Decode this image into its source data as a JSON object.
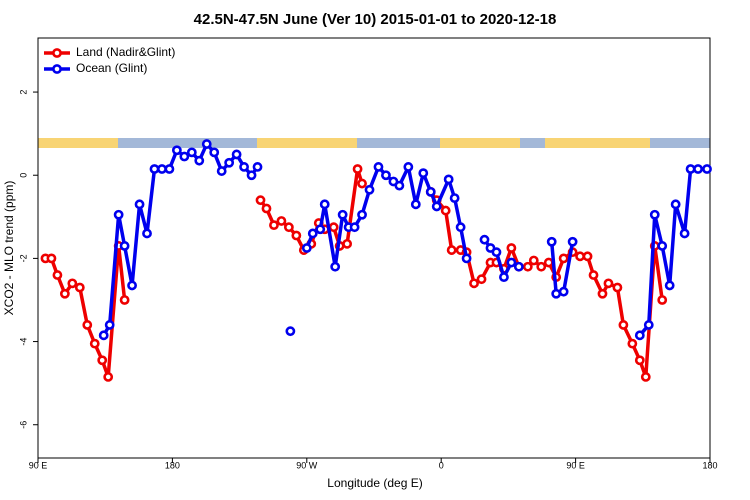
{
  "chart_data": {
    "type": "line",
    "title": "42.5N-47.5N June (Ver 10)   2015-01-01 to 2020-12-18",
    "x_label": "Longitude (deg E)",
    "y_label": "XCO2 - MLO trend (ppm)",
    "xlim": [
      90,
      540
    ],
    "ylim": [
      -6.8,
      3.3
    ],
    "xticks": [
      {
        "value": 90,
        "label": "90 E"
      },
      180,
      {
        "value": 270,
        "label": "90 W"
      },
      {
        "value": 360,
        "label": "0"
      },
      {
        "value": 450,
        "label": "90 E"
      },
      {
        "value": 540,
        "label": "180"
      }
    ],
    "yticks": [
      -6,
      -4,
      -2,
      0,
      2
    ],
    "legend": "topleft",
    "series": [
      {
        "name": "Land (Nadir&Glint)",
        "color": "#ee0000",
        "x": [
          95,
          99,
          103,
          108,
          113,
          118,
          123,
          128,
          133,
          137,
          144,
          148,
          200,
          239,
          243,
          248,
          253,
          258,
          263,
          268,
          273,
          278,
          282,
          288,
          292,
          297,
          304,
          307,
          330,
          353,
          357,
          363,
          367,
          373,
          377,
          382,
          387,
          393,
          397,
          402,
          407,
          412,
          418,
          422,
          427,
          432,
          437,
          442,
          448,
          453,
          458,
          462,
          468,
          472,
          478,
          482,
          488,
          493,
          497,
          503,
          508
        ],
        "values": [
          -2.0,
          -2.0,
          -2.4,
          -2.85,
          -2.6,
          -2.7,
          -3.6,
          -4.05,
          -4.45,
          -4.85,
          -1.7,
          -3.0,
          null,
          -0.6,
          -0.8,
          -1.2,
          -1.1,
          -1.25,
          -1.45,
          -1.8,
          -1.65,
          -1.15,
          -1.3,
          -1.25,
          -1.7,
          -1.65,
          0.15,
          -0.2,
          null,
          -0.4,
          -0.6,
          -0.85,
          -1.8,
          -1.8,
          -1.85,
          -2.6,
          -2.5,
          -2.1,
          -2.1,
          -2.25,
          -1.75,
          -2.2,
          -2.2,
          -2.05,
          -2.2,
          -2.1,
          -2.45,
          -2.0,
          -1.85,
          -1.95,
          -1.95,
          -2.4,
          -2.85,
          -2.6,
          -2.7,
          -3.6,
          -4.05,
          -4.45,
          -4.85,
          -1.7,
          -3.0
        ]
      },
      {
        "name": "Ocean (Glint)",
        "color": "#0000ee",
        "x": [
          134,
          138,
          144,
          148,
          153,
          158,
          163,
          168,
          173,
          178,
          183,
          188,
          193,
          198,
          203,
          208,
          213,
          218,
          223,
          228,
          233,
          237,
          248,
          259,
          265,
          270,
          274,
          279,
          282,
          289,
          294,
          298,
          302,
          307,
          312,
          318,
          323,
          328,
          332,
          338,
          343,
          348,
          353,
          357,
          365,
          369,
          373,
          377,
          380,
          389,
          393,
          397,
          402,
          407,
          412,
          430,
          434,
          437,
          442,
          448,
          470,
          493,
          499,
          503,
          508,
          513,
          517,
          523,
          527,
          532,
          538
        ],
        "values": [
          -3.85,
          -3.6,
          -0.95,
          -1.7,
          -2.65,
          -0.7,
          -1.4,
          0.15,
          0.15,
          0.15,
          0.6,
          0.45,
          0.55,
          0.35,
          0.75,
          0.55,
          0.1,
          0.3,
          0.5,
          0.2,
          0.0,
          0.2,
          null,
          -3.75,
          null,
          -1.75,
          -1.4,
          -1.3,
          -0.7,
          -2.2,
          -0.95,
          -1.25,
          -1.25,
          -0.95,
          -0.35,
          0.2,
          0.0,
          -0.15,
          -0.25,
          0.2,
          -0.7,
          0.05,
          -0.4,
          -0.75,
          -0.1,
          -0.55,
          -1.25,
          -2.0,
          null,
          -1.55,
          -1.75,
          -1.85,
          -2.45,
          -2.1,
          -2.2,
          null,
          -1.6,
          -2.85,
          -2.8,
          -1.6,
          null,
          -3.85,
          -3.6,
          -0.95,
          -1.7,
          -2.65,
          -0.7,
          -1.4,
          0.15,
          0.15,
          0.15
        ]
      }
    ]
  }
}
